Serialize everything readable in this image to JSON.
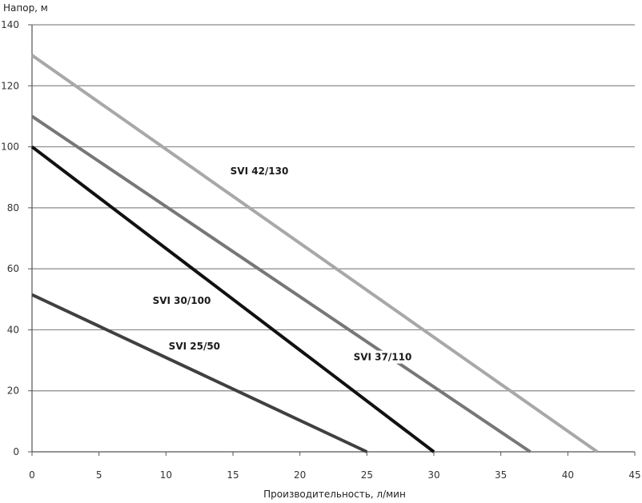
{
  "chart_data": {
    "type": "line",
    "xlabel": "Производительность, л/мин",
    "ylabel": "Напор, м",
    "xlim": [
      0,
      45
    ],
    "ylim": [
      0,
      140
    ],
    "xticks": [
      0,
      5,
      10,
      15,
      20,
      25,
      30,
      35,
      40,
      45
    ],
    "yticks": [
      0,
      20,
      40,
      60,
      80,
      100,
      120,
      140
    ],
    "grid": "horizontal",
    "series": [
      {
        "name": "SVI 25/50",
        "color": "#404040",
        "points": [
          [
            0,
            51.5
          ],
          [
            25,
            0
          ]
        ]
      },
      {
        "name": "SVI 30/100",
        "color": "#111111",
        "points": [
          [
            0,
            100
          ],
          [
            30,
            0
          ]
        ]
      },
      {
        "name": "SVI 37/110",
        "color": "#777777",
        "points": [
          [
            0,
            110
          ],
          [
            37.2,
            0
          ]
        ]
      },
      {
        "name": "SVI 42/130",
        "color": "#a8a8a8",
        "points": [
          [
            0,
            130
          ],
          [
            42.2,
            0
          ]
        ]
      }
    ],
    "labels": [
      {
        "series": 0,
        "text": "SVI 25/50",
        "at": [
          10.2,
          33.5
        ]
      },
      {
        "series": 1,
        "text": "SVI 30/100",
        "at": [
          9,
          48.5
        ]
      },
      {
        "series": 2,
        "text": "SVI 37/110",
        "at": [
          24,
          30
        ]
      },
      {
        "series": 3,
        "text": "SVI 42/130",
        "at": [
          14.8,
          91
        ]
      }
    ]
  }
}
